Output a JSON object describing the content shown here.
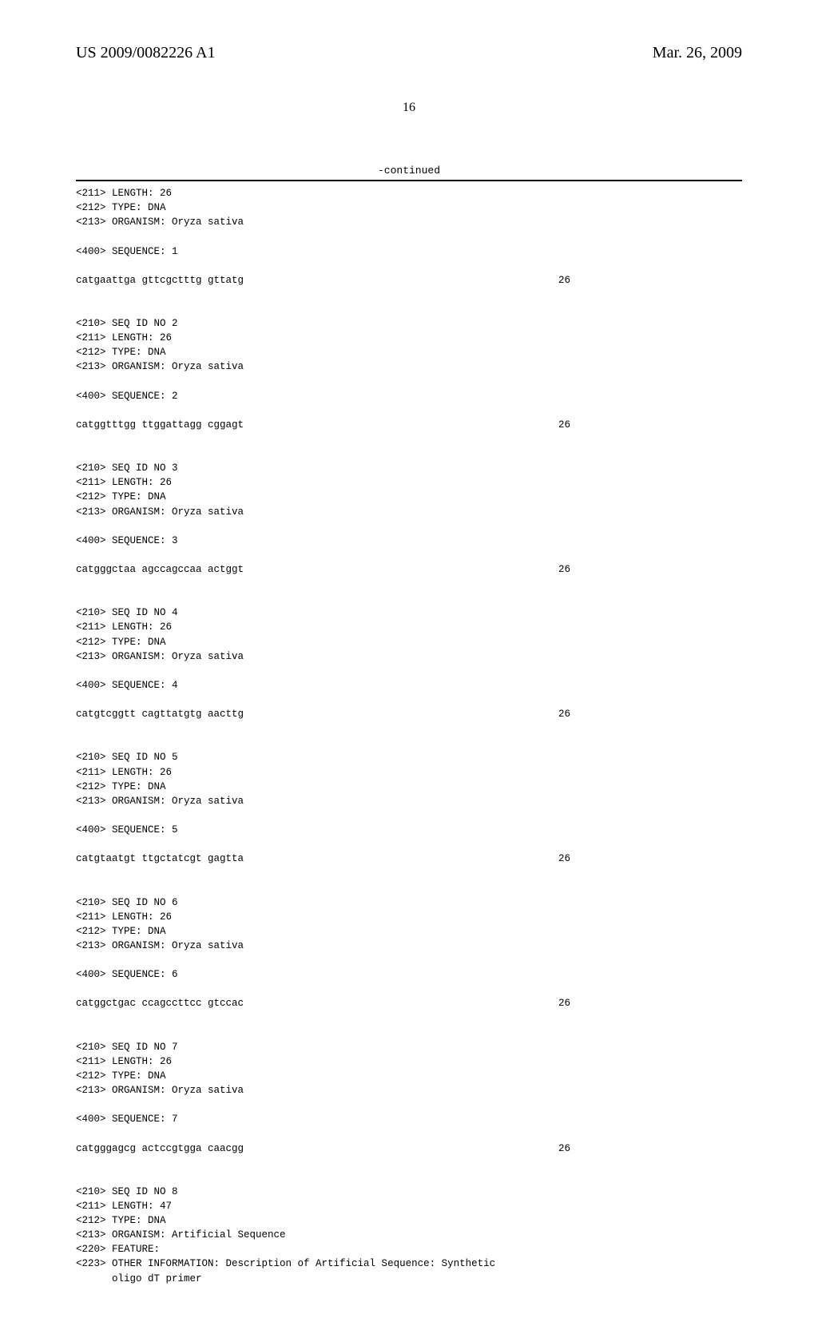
{
  "header": {
    "pub_number": "US 2009/0082226 A1",
    "pub_date": "Mar. 26, 2009"
  },
  "page_number": "16",
  "continued_label": "-continued",
  "sequences": [
    {
      "pre_lines": [
        "<211> LENGTH: 26",
        "<212> TYPE: DNA",
        "<213> ORGANISM: Oryza sativa"
      ],
      "seq_label": "<400> SEQUENCE: 1",
      "seq_text": "catgaattga gttcgctttg gttatg",
      "seq_len": "26"
    },
    {
      "pre_lines": [
        "<210> SEQ ID NO 2",
        "<211> LENGTH: 26",
        "<212> TYPE: DNA",
        "<213> ORGANISM: Oryza sativa"
      ],
      "seq_label": "<400> SEQUENCE: 2",
      "seq_text": "catggtttgg ttggattagg cggagt",
      "seq_len": "26"
    },
    {
      "pre_lines": [
        "<210> SEQ ID NO 3",
        "<211> LENGTH: 26",
        "<212> TYPE: DNA",
        "<213> ORGANISM: Oryza sativa"
      ],
      "seq_label": "<400> SEQUENCE: 3",
      "seq_text": "catgggctaa agccagccaa actggt",
      "seq_len": "26"
    },
    {
      "pre_lines": [
        "<210> SEQ ID NO 4",
        "<211> LENGTH: 26",
        "<212> TYPE: DNA",
        "<213> ORGANISM: Oryza sativa"
      ],
      "seq_label": "<400> SEQUENCE: 4",
      "seq_text": "catgtcggtt cagttatgtg aacttg",
      "seq_len": "26"
    },
    {
      "pre_lines": [
        "<210> SEQ ID NO 5",
        "<211> LENGTH: 26",
        "<212> TYPE: DNA",
        "<213> ORGANISM: Oryza sativa"
      ],
      "seq_label": "<400> SEQUENCE: 5",
      "seq_text": "catgtaatgt ttgctatcgt gagtta",
      "seq_len": "26"
    },
    {
      "pre_lines": [
        "<210> SEQ ID NO 6",
        "<211> LENGTH: 26",
        "<212> TYPE: DNA",
        "<213> ORGANISM: Oryza sativa"
      ],
      "seq_label": "<400> SEQUENCE: 6",
      "seq_text": "catggctgac ccagccttcc gtccac",
      "seq_len": "26"
    },
    {
      "pre_lines": [
        "<210> SEQ ID NO 7",
        "<211> LENGTH: 26",
        "<212> TYPE: DNA",
        "<213> ORGANISM: Oryza sativa"
      ],
      "seq_label": "<400> SEQUENCE: 7",
      "seq_text": "catgggagcg actccgtgga caacgg",
      "seq_len": "26"
    },
    {
      "pre_lines": [
        "<210> SEQ ID NO 8",
        "<211> LENGTH: 47",
        "<212> TYPE: DNA",
        "<213> ORGANISM: Artificial Sequence",
        "<220> FEATURE:",
        "<223> OTHER INFORMATION: Description of Artificial Sequence: Synthetic",
        "      oligo dT primer"
      ],
      "seq_label": null,
      "seq_text": null,
      "seq_len": null
    }
  ]
}
